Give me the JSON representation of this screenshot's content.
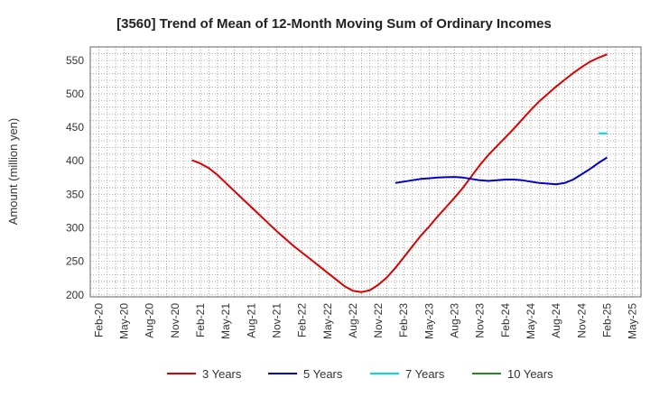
{
  "chart_data": {
    "type": "line",
    "title": "[3560]  Trend of Mean of 12-Month Moving Sum of Ordinary Incomes",
    "xlabel": "",
    "ylabel": "Amount (million yen)",
    "ylim": [
      197,
      570
    ],
    "yticks": [
      200,
      250,
      300,
      350,
      400,
      450,
      500,
      550
    ],
    "xticks": [
      "Feb-20",
      "May-20",
      "Aug-20",
      "Nov-20",
      "Feb-21",
      "May-21",
      "Aug-21",
      "Nov-21",
      "Feb-22",
      "May-22",
      "Aug-22",
      "Nov-22",
      "Feb-23",
      "May-23",
      "Aug-23",
      "Nov-23",
      "Feb-24",
      "May-24",
      "Aug-24",
      "Nov-24",
      "Feb-25",
      "May-25"
    ],
    "grid": true,
    "legend_position": "bottom",
    "series": [
      {
        "name": "3 Years",
        "color": "#dd0000",
        "points": [
          [
            "Jan-21",
            401
          ],
          [
            "Feb-21",
            396
          ],
          [
            "Mar-21",
            389
          ],
          [
            "Apr-21",
            379
          ],
          [
            "May-21",
            367
          ],
          [
            "Jun-21",
            355
          ],
          [
            "Jul-21",
            343
          ],
          [
            "Aug-21",
            331
          ],
          [
            "Sep-21",
            319
          ],
          [
            "Oct-21",
            307
          ],
          [
            "Nov-21",
            295
          ],
          [
            "Dec-21",
            284
          ],
          [
            "Jan-22",
            273
          ],
          [
            "Feb-22",
            263
          ],
          [
            "Mar-22",
            253
          ],
          [
            "Apr-22",
            243
          ],
          [
            "May-22",
            233
          ],
          [
            "Jun-22",
            223
          ],
          [
            "Jul-22",
            213
          ],
          [
            "Aug-22",
            206
          ],
          [
            "Sep-22",
            204
          ],
          [
            "Oct-22",
            207
          ],
          [
            "Nov-22",
            215
          ],
          [
            "Dec-22",
            226
          ],
          [
            "Jan-23",
            240
          ],
          [
            "Feb-23",
            256
          ],
          [
            "Mar-23",
            272
          ],
          [
            "Apr-23",
            288
          ],
          [
            "May-23",
            302
          ],
          [
            "Jun-23",
            317
          ],
          [
            "Jul-23",
            331
          ],
          [
            "Aug-23",
            345
          ],
          [
            "Sep-23",
            360
          ],
          [
            "Oct-23",
            377
          ],
          [
            "Nov-23",
            394
          ],
          [
            "Dec-23",
            409
          ],
          [
            "Jan-24",
            422
          ],
          [
            "Feb-24",
            435
          ],
          [
            "Mar-24",
            448
          ],
          [
            "Apr-24",
            462
          ],
          [
            "May-24",
            476
          ],
          [
            "Jun-24",
            489
          ],
          [
            "Jul-24",
            500
          ],
          [
            "Aug-24",
            511
          ],
          [
            "Sep-24",
            521
          ],
          [
            "Oct-24",
            531
          ],
          [
            "Nov-24",
            540
          ],
          [
            "Dec-24",
            548
          ],
          [
            "Jan-25",
            554
          ],
          [
            "Feb-25",
            559
          ]
        ]
      },
      {
        "name": "5 Years",
        "color": "#0000cc",
        "points": [
          [
            "Jan-23",
            367
          ],
          [
            "Feb-23",
            369
          ],
          [
            "Mar-23",
            371
          ],
          [
            "Apr-23",
            373
          ],
          [
            "May-23",
            374
          ],
          [
            "Jun-23",
            375
          ],
          [
            "Jul-23",
            375.5
          ],
          [
            "Aug-23",
            376
          ],
          [
            "Sep-23",
            375
          ],
          [
            "Oct-23",
            373
          ],
          [
            "Nov-23",
            371
          ],
          [
            "Dec-23",
            370
          ],
          [
            "Jan-24",
            371
          ],
          [
            "Feb-24",
            372
          ],
          [
            "Mar-24",
            372
          ],
          [
            "Apr-24",
            371
          ],
          [
            "May-24",
            369
          ],
          [
            "Jun-24",
            367
          ],
          [
            "Jul-24",
            366
          ],
          [
            "Aug-24",
            365
          ],
          [
            "Sep-24",
            367
          ],
          [
            "Oct-24",
            372
          ],
          [
            "Nov-24",
            380
          ],
          [
            "Dec-24",
            388
          ],
          [
            "Jan-25",
            397
          ],
          [
            "Feb-25",
            405
          ]
        ]
      },
      {
        "name": "7 Years",
        "color": "#00dddd",
        "points": [
          [
            "Jan-25",
            441
          ],
          [
            "Feb-25",
            441
          ]
        ]
      },
      {
        "name": "10 Years",
        "color": "#228b22",
        "points": []
      }
    ]
  }
}
